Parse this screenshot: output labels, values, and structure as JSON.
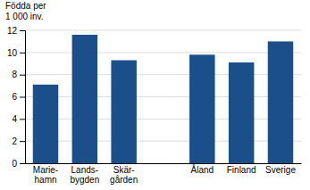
{
  "chart_data": {
    "type": "bar",
    "ylabel": "Födda per\n1 000 inv.",
    "categories": [
      "Marie-\nhamn",
      "Lands-\nbygden",
      "Skär-\ngården",
      null,
      "Åland",
      "Finland",
      "Sverige"
    ],
    "values": [
      7.1,
      11.6,
      9.3,
      null,
      9.8,
      9.1,
      11.0
    ],
    "color": "#1a4f8a",
    "ylim": [
      0,
      12
    ],
    "yticks": [
      0,
      2,
      4,
      6,
      8,
      10,
      12
    ],
    "grid": true
  }
}
